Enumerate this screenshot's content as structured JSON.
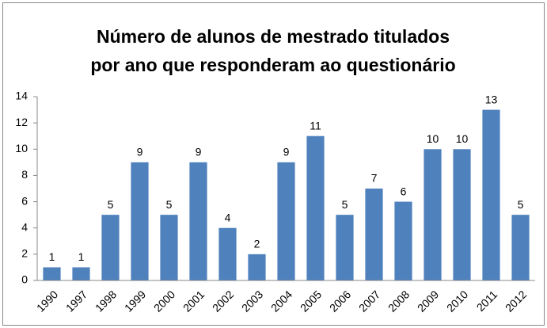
{
  "chart_data": {
    "type": "bar",
    "title": [
      "Número de alunos de mestrado titulados",
      "por ano que responderam ao questionário"
    ],
    "categories": [
      "1990",
      "1997",
      "1998",
      "1999",
      "2000",
      "2001",
      "2002",
      "2003",
      "2004",
      "2005",
      "2006",
      "2007",
      "2008",
      "2009",
      "2010",
      "2011",
      "2012"
    ],
    "values": [
      1,
      1,
      5,
      9,
      5,
      9,
      4,
      2,
      9,
      11,
      5,
      7,
      6,
      10,
      10,
      13,
      5
    ],
    "color": "#4f81bd",
    "ylim": [
      0,
      14
    ],
    "yticks": [
      0,
      2,
      4,
      6,
      8,
      10,
      12,
      14
    ],
    "grid": false
  }
}
